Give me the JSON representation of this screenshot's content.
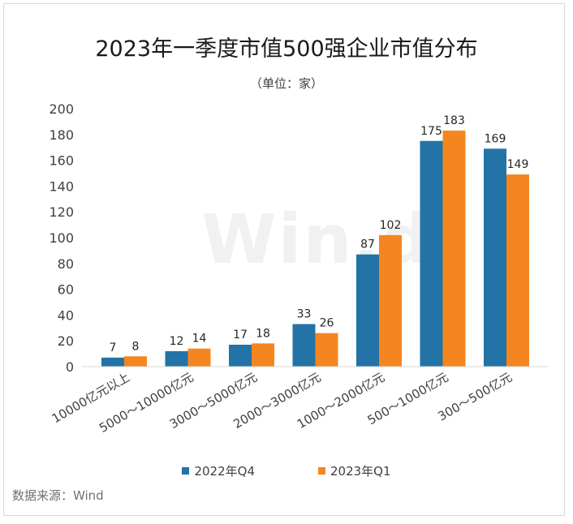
{
  "title": "2023年一季度市值500强企业市值分布",
  "subtitle": "（单位：家）",
  "source": "数据来源：Wind",
  "watermark": "Win.d",
  "colors": {
    "series_1": "#2373a6",
    "series_2": "#f5861f"
  },
  "chart_data": {
    "type": "bar",
    "title": "2023年一季度市值500强企业市值分布",
    "subtitle": "（单位：家）",
    "categories": [
      "10000亿元以上",
      "5000～10000亿元",
      "3000～5000亿元",
      "2000～3000亿元",
      "1000～2000亿元",
      "500～1000亿元",
      "300～500亿元"
    ],
    "series": [
      {
        "name": "2022年Q4",
        "values": [
          7,
          12,
          17,
          33,
          87,
          175,
          169
        ]
      },
      {
        "name": "2023年Q1",
        "values": [
          8,
          14,
          18,
          26,
          102,
          183,
          149
        ]
      }
    ],
    "yticks": [
      0,
      20,
      40,
      60,
      80,
      100,
      120,
      140,
      160,
      180,
      200
    ],
    "ylim": [
      0,
      200
    ],
    "grid": false,
    "legend_position": "bottom"
  }
}
